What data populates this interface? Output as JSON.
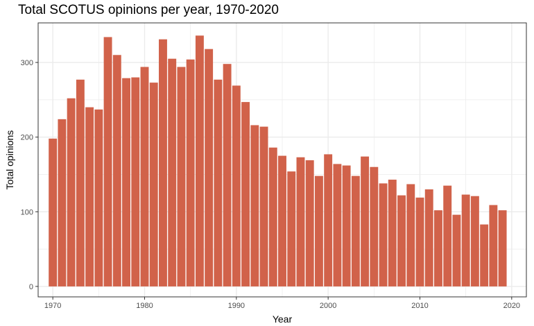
{
  "chart_data": {
    "type": "bar",
    "title": "Total SCOTUS opinions per year, 1970-2020",
    "xlabel": "Year",
    "ylabel": "Total opinions",
    "x": [
      1970,
      1971,
      1972,
      1973,
      1974,
      1975,
      1976,
      1977,
      1978,
      1979,
      1980,
      1981,
      1982,
      1983,
      1984,
      1985,
      1986,
      1987,
      1988,
      1989,
      1990,
      1991,
      1992,
      1993,
      1994,
      1995,
      1996,
      1997,
      1998,
      1999,
      2000,
      2001,
      2002,
      2003,
      2004,
      2005,
      2006,
      2007,
      2008,
      2009,
      2010,
      2011,
      2012,
      2013,
      2014,
      2015,
      2016,
      2017,
      2018,
      2019
    ],
    "values": [
      198,
      224,
      252,
      277,
      240,
      237,
      334,
      310,
      279,
      280,
      294,
      273,
      331,
      305,
      294,
      304,
      336,
      318,
      277,
      298,
      269,
      247,
      216,
      214,
      186,
      175,
      154,
      173,
      169,
      148,
      177,
      164,
      162,
      148,
      174,
      160,
      138,
      143,
      122,
      137,
      119,
      130,
      102,
      135,
      96,
      123,
      121,
      83,
      109,
      102
    ],
    "xlim": [
      1968.4,
      2021.6
    ],
    "ylim": [
      -14,
      353
    ],
    "xticks": [
      1970,
      1980,
      1990,
      2000,
      2010,
      2020
    ],
    "yticks": [
      0,
      100,
      200,
      300
    ],
    "xminor": [
      1975,
      1985,
      1995,
      2005,
      2015
    ],
    "yminor": [
      50,
      150,
      250
    ],
    "grid": true,
    "bar_color": "#d1624a",
    "panel_border_color": "#333333",
    "grid_color": "#ebebeb"
  }
}
